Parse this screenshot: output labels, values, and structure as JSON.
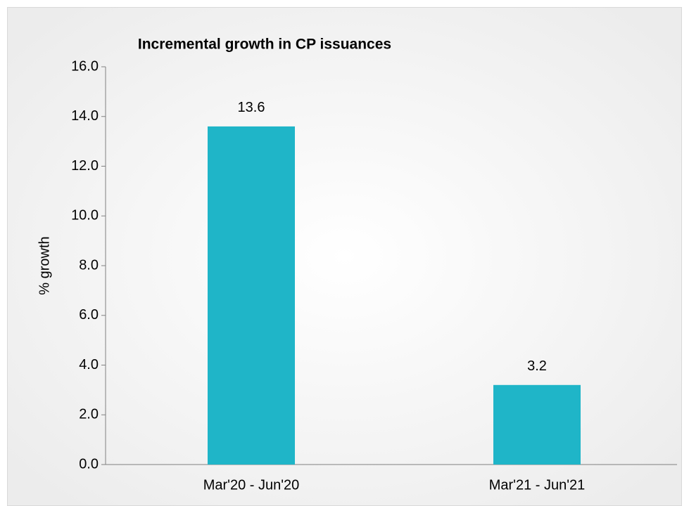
{
  "chart_data": {
    "type": "bar",
    "title": "Incremental growth in CP issuances",
    "ylabel": "% growth",
    "categories": [
      "Mar'20 - Jun'20",
      "Mar'21 - Jun'21"
    ],
    "values": [
      13.6,
      3.2
    ],
    "color": "#1fb5c8",
    "ylim": [
      0,
      16
    ],
    "yticks": [
      {
        "value": 0,
        "label": "0.0"
      },
      {
        "value": 2,
        "label": "2.0"
      },
      {
        "value": 4,
        "label": "4.0"
      },
      {
        "value": 6,
        "label": "6.0"
      },
      {
        "value": 8,
        "label": "8.0"
      },
      {
        "value": 10,
        "label": "10.0"
      },
      {
        "value": 12,
        "label": "12.0"
      },
      {
        "value": 14,
        "label": "14.0"
      },
      {
        "value": 16,
        "label": "16.0"
      }
    ],
    "grid": false
  }
}
